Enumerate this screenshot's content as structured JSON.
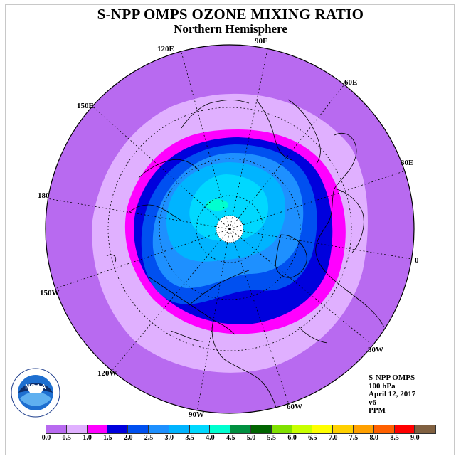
{
  "title": "S-NPP OMPS OZONE MIXING RATIO",
  "subtitle": "Northern Hemisphere",
  "longitude_labels": {
    "lon_90E": "90E",
    "lon_60E": "60E",
    "lon_30E": "30E",
    "lon_0": "0",
    "lon_30W": "30W",
    "lon_60W": "60W",
    "lon_90W": "90W",
    "lon_120W": "120W",
    "lon_150W": "150W",
    "lon_180": "180",
    "lon_150E": "150E",
    "lon_120E": "120E"
  },
  "info": {
    "instrument": "S-NPP OMPS",
    "level": "100 hPa",
    "date": "April 12, 2017",
    "version": "v6",
    "units": "PPM"
  },
  "colorbar": {
    "colors": [
      "#b86af0",
      "#e0b0ff",
      "#ff00ff",
      "#0000dd",
      "#0050f0",
      "#1e90ff",
      "#00b4ff",
      "#00d8ff",
      "#00ffd0",
      "#009040",
      "#006400",
      "#80e000",
      "#c8ff00",
      "#ffff00",
      "#ffd000",
      "#ffa000",
      "#ff6000",
      "#ff0000",
      "#806040"
    ],
    "ticks": [
      "0.0",
      "0.5",
      "1.0",
      "1.5",
      "2.0",
      "2.5",
      "3.0",
      "3.5",
      "4.0",
      "4.5",
      "5.0",
      "5.5",
      "6.0",
      "6.5",
      "7.0",
      "7.5",
      "8.0",
      "8.5",
      "9.0"
    ]
  },
  "logo": {
    "text": "NOAA",
    "ring_text": "NATIONAL OCEANIC AND ATMOSPHERIC ADMINISTRATION · U.S. DEPARTMENT OF COMMERCE"
  }
}
